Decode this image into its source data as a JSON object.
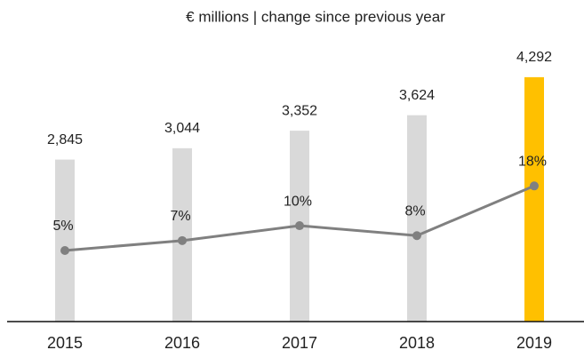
{
  "chart_data": {
    "type": "bar",
    "title": "€ millions | change since previous year",
    "categories": [
      "2015",
      "2016",
      "2017",
      "2018",
      "2019"
    ],
    "ylim": [
      0,
      5000
    ],
    "y2lim": [
      -9.3,
      48
    ],
    "series": [
      {
        "type": "bar",
        "colors": [
          "#d9d9d9",
          "#d9d9d9",
          "#d9d9d9",
          "#d9d9d9",
          "#ffc000"
        ],
        "values": [
          2845,
          3044,
          3352,
          3624,
          4292
        ],
        "value_labels": [
          "2,845",
          "3,044",
          "3,352",
          "3,624",
          "4,292"
        ]
      },
      {
        "type": "line",
        "axis": "y2",
        "color": "#808080",
        "values": [
          5,
          7,
          10,
          8,
          18
        ],
        "value_labels": [
          "5%",
          "7%",
          "10%",
          "8%",
          "18%"
        ]
      }
    ]
  }
}
